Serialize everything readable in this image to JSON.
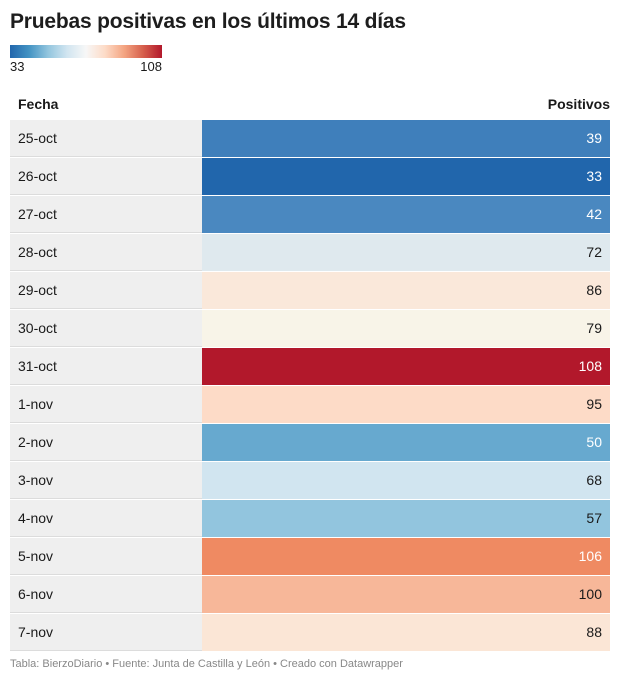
{
  "title": "Pruebas positivas en los últimos 14 días",
  "legend": {
    "min_label": "33",
    "max_label": "108"
  },
  "columns": {
    "fecha": "Fecha",
    "positivos": "Positivos"
  },
  "footer": {
    "prefix": "Tabla: BierzoDiario",
    "source": "Fuente: Junta de Castilla y León",
    "credit": "Creado con Datawrapper",
    "separator": " • "
  },
  "colors": {
    "scale": [
      "#2166ac",
      "#4393c3",
      "#92c5de",
      "#d1e5f0",
      "#f7f7f7",
      "#fddbc7",
      "#f4a582",
      "#d6604d",
      "#b2182b"
    ],
    "date_cell_bg": "#efefef"
  },
  "chart_data": {
    "type": "table",
    "title": "Pruebas positivas en los últimos 14 días",
    "columns": [
      "Fecha",
      "Positivos"
    ],
    "color_scale": {
      "min": 33,
      "max": 108,
      "palette": "blue-to-red diverging"
    },
    "rows": [
      {
        "fecha": "25-oct",
        "positivos": 39,
        "color": "#3f7fbb",
        "text_color": "#ffffff"
      },
      {
        "fecha": "26-oct",
        "positivos": 33,
        "color": "#2166ac",
        "text_color": "#ffffff"
      },
      {
        "fecha": "27-oct",
        "positivos": 42,
        "color": "#4a88c0",
        "text_color": "#ffffff"
      },
      {
        "fecha": "28-oct",
        "positivos": 72,
        "color": "#dfe9ee",
        "text_color": "#1a1a1a"
      },
      {
        "fecha": "29-oct",
        "positivos": 86,
        "color": "#fae8da",
        "text_color": "#1a1a1a"
      },
      {
        "fecha": "30-oct",
        "positivos": 79,
        "color": "#f8f4e8",
        "text_color": "#1a1a1a"
      },
      {
        "fecha": "31-oct",
        "positivos": 108,
        "color": "#b2182b",
        "text_color": "#ffffff"
      },
      {
        "fecha": "1-nov",
        "positivos": 95,
        "color": "#fddbc7",
        "text_color": "#1a1a1a"
      },
      {
        "fecha": "2-nov",
        "positivos": 50,
        "color": "#67a9cf",
        "text_color": "#ffffff"
      },
      {
        "fecha": "3-nov",
        "positivos": 68,
        "color": "#d1e5f0",
        "text_color": "#1a1a1a"
      },
      {
        "fecha": "4-nov",
        "positivos": 57,
        "color": "#92c5de",
        "text_color": "#1a1a1a"
      },
      {
        "fecha": "5-nov",
        "positivos": 106,
        "color": "#ef8a62",
        "text_color": "#ffffff"
      },
      {
        "fecha": "6-nov",
        "positivos": 100,
        "color": "#f7b799",
        "text_color": "#1a1a1a"
      },
      {
        "fecha": "7-nov",
        "positivos": 88,
        "color": "#fbe6d6",
        "text_color": "#1a1a1a"
      }
    ]
  }
}
